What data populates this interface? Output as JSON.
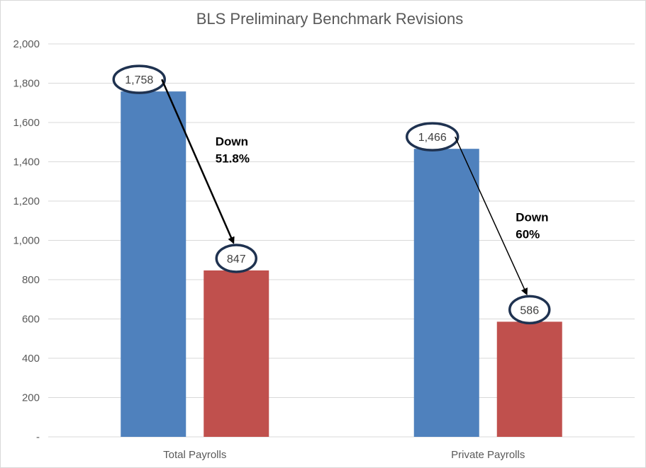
{
  "chart_data": {
    "type": "bar",
    "title": "BLS Preliminary Benchmark Revisions",
    "categories": [
      "Total Payrolls",
      "Private Payrolls"
    ],
    "series": [
      {
        "values": [
          1758,
          1466
        ],
        "color": "#4f81bd"
      },
      {
        "values": [
          847,
          586
        ],
        "color": "#c0504d"
      }
    ],
    "data_labels": [
      [
        "1,758",
        "847"
      ],
      [
        "1,466",
        "586"
      ]
    ],
    "annotations": [
      "Down\n51.8%",
      "Down\n60%"
    ],
    "ylim": [
      0,
      2000
    ],
    "yticks": [
      0,
      200,
      400,
      600,
      800,
      1000,
      1200,
      1400,
      1600,
      1800,
      2000
    ],
    "ytick_labels": [
      "-",
      "200",
      "400",
      "600",
      "800",
      "1,000",
      "1,200",
      "1,400",
      "1,600",
      "1,800",
      "2,000"
    ],
    "grid": true,
    "xlabel": "",
    "ylabel": ""
  }
}
